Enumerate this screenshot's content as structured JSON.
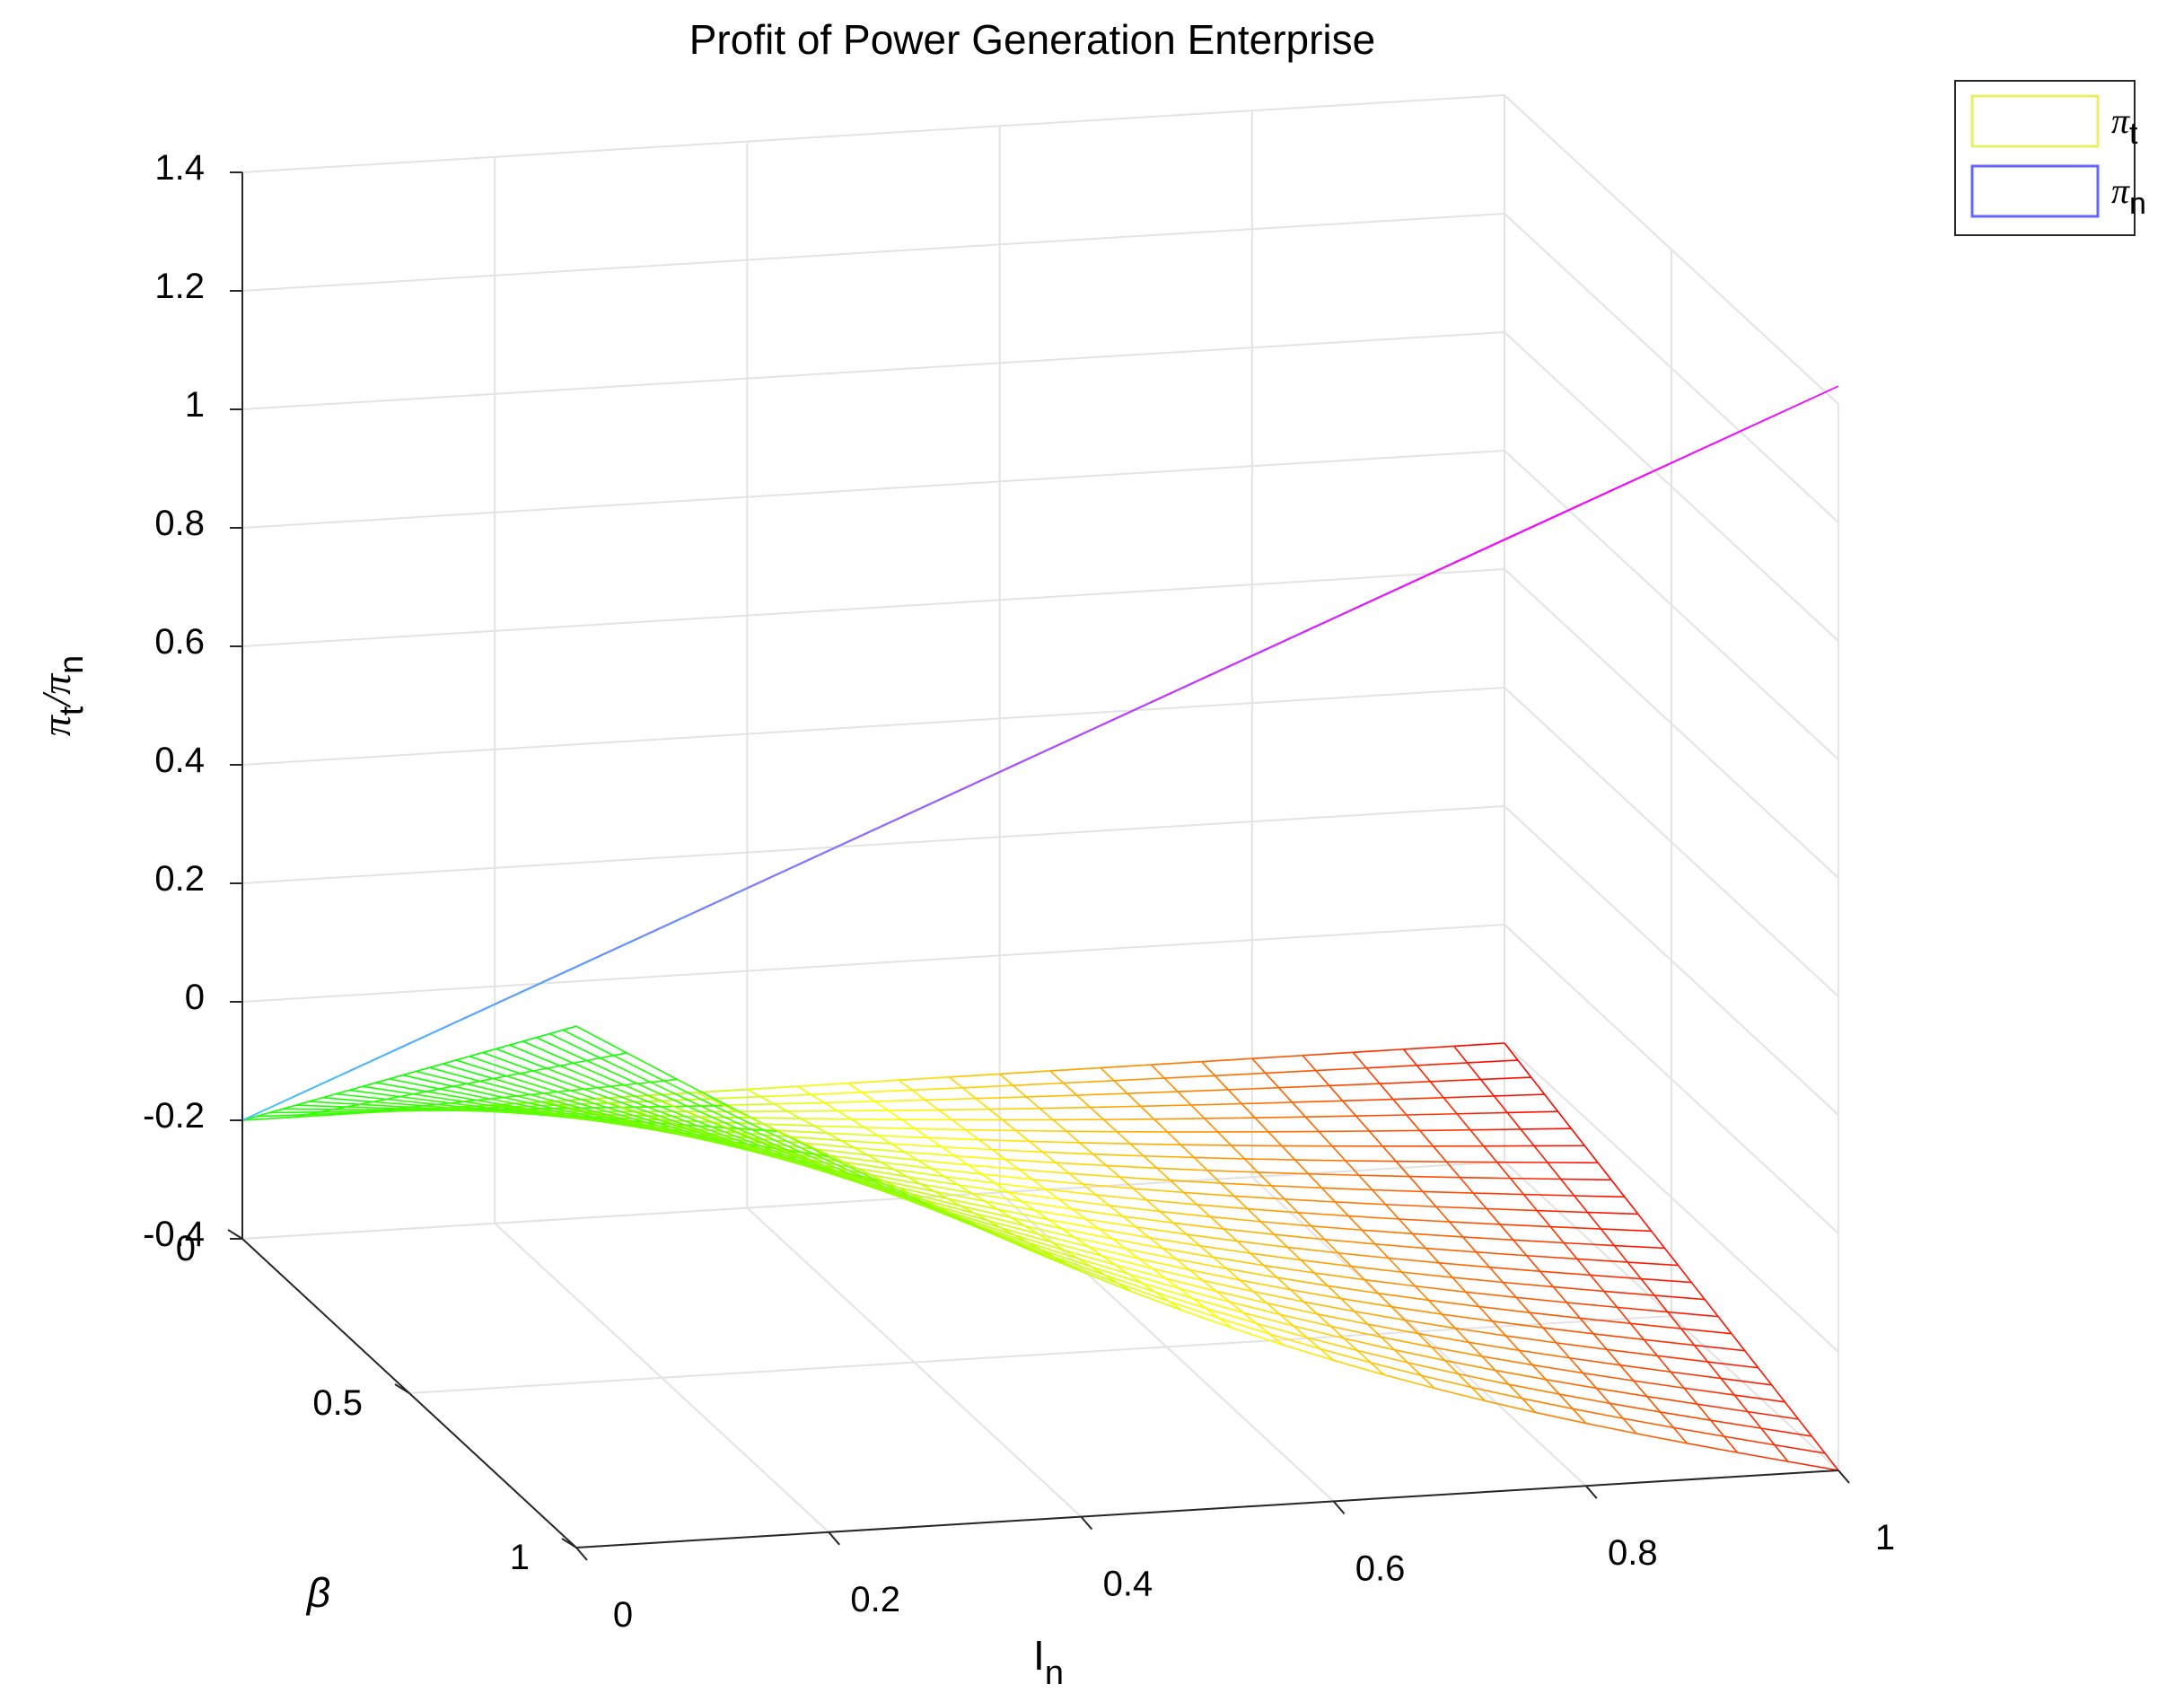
{
  "chart_data": {
    "type": "surface3d",
    "title": "Profit of Power Generation Enterprise",
    "xlabel": "I",
    "xlabel_sub": "n",
    "ylabel": "β",
    "zlabel_parts": [
      "π",
      "t",
      "/π",
      "n"
    ],
    "xlim": [
      0,
      1
    ],
    "ylim": [
      0,
      1
    ],
    "zlim": [
      -0.4,
      1.4
    ],
    "xticks": [
      "0",
      "0.2",
      "0.4",
      "0.6",
      "0.8",
      "1"
    ],
    "yticks": [
      "0",
      "0.5",
      "1"
    ],
    "zticks": [
      "-0.4",
      "-0.2",
      "0",
      "0.2",
      "0.4",
      "0.6",
      "0.8",
      "1",
      "1.2",
      "1.4"
    ],
    "grid": true,
    "legend_position": "top-right",
    "grid_resolution": 25,
    "series": [
      {
        "name": "π",
        "name_sub": "t",
        "legend_color": "#e6f060",
        "colormap": "autumn",
        "corners": {
          "x0_y0": -0.2,
          "x1_y0": -0.2,
          "x0_y1": 0.48,
          "x1_y1": -0.4
        }
      },
      {
        "name": "π",
        "name_sub": "n",
        "legend_color": "#6464ff",
        "colormap": "cool",
        "corners": {
          "x0_y0": -0.2,
          "x1_y0": 0.65,
          "x0_y1": 0.58,
          "x1_y1": 1.43
        }
      }
    ]
  }
}
